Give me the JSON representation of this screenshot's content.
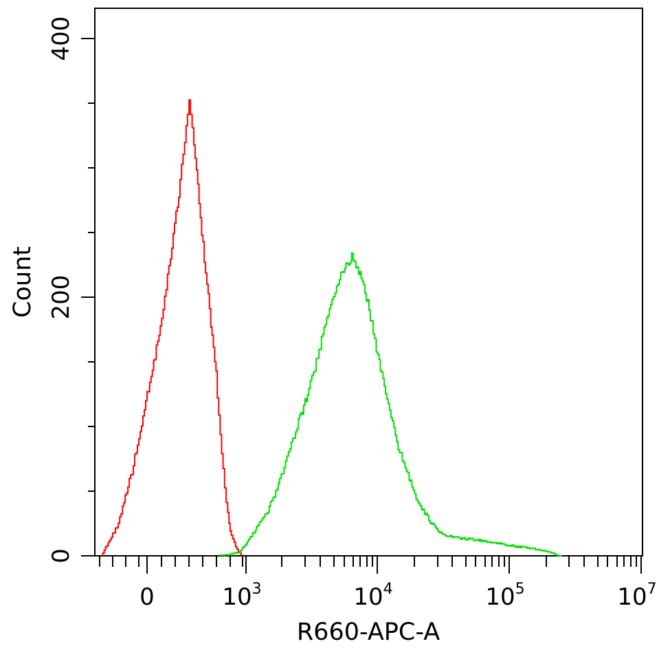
{
  "chart_data": {
    "type": "line",
    "title": "",
    "xlabel": "R660-APC-A",
    "ylabel": "Count",
    "x_scale": "biexponential",
    "x_tick_labels": [
      {
        "base": "0",
        "exp": ""
      },
      {
        "base": "10",
        "exp": "3"
      },
      {
        "base": "10",
        "exp": "4"
      },
      {
        "base": "10",
        "exp": "5"
      },
      {
        "base": "10",
        "exp": "7"
      }
    ],
    "y_tick_labels": [
      "0",
      "200",
      "400"
    ],
    "ylim": [
      0,
      400
    ],
    "grid": false,
    "legend": "none",
    "series": [
      {
        "color": "#ff0000",
        "x": [
          -250,
          -120,
          -50,
          0,
          60,
          120,
          180,
          230,
          270,
          300,
          330,
          370,
          420,
          480,
          560,
          650,
          720,
          800,
          880,
          950
        ],
        "y": [
          0,
          25,
          70,
          120,
          170,
          230,
          280,
          320,
          350,
          330,
          300,
          250,
          200,
          140,
          80,
          40,
          20,
          10,
          3,
          0
        ]
      },
      {
        "color": "#00e000",
        "x": [
          500,
          700,
          900,
          1000,
          1200,
          1500,
          1800,
          2100,
          2500,
          3000,
          3500,
          4000,
          4500,
          5000,
          5500,
          6000,
          6500,
          7000,
          8000,
          9000,
          10000,
          12000,
          15000,
          20000,
          25000,
          30000,
          40000,
          60000,
          80000,
          100000,
          150000,
          200000,
          250000
        ],
        "y": [
          0,
          1,
          3,
          8,
          20,
          35,
          55,
          75,
          100,
          125,
          150,
          175,
          195,
          210,
          220,
          225,
          232,
          225,
          210,
          185,
          160,
          120,
          80,
          45,
          28,
          18,
          14,
          12,
          10,
          8,
          6,
          3,
          0
        ]
      }
    ]
  }
}
